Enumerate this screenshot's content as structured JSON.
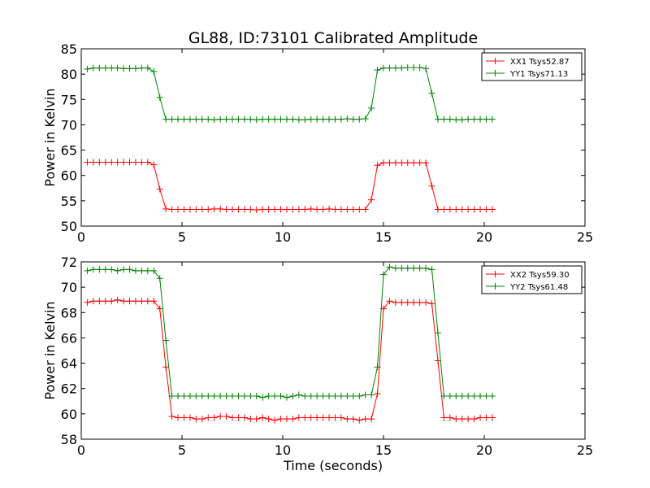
{
  "figure": {
    "title": "GL88, ID:73101 Calibrated Amplitude",
    "xlabel": "Time (seconds)"
  },
  "chart_data": [
    {
      "type": "line",
      "title": "GL88, ID:73101 Calibrated Amplitude",
      "xlabel": "",
      "ylabel": "Power in Kelvin",
      "xlim": [
        0,
        25
      ],
      "ylim": [
        50,
        85
      ],
      "xticks": [
        0,
        5,
        10,
        15,
        20,
        25
      ],
      "yticks": [
        50,
        55,
        60,
        65,
        70,
        75,
        80,
        85
      ],
      "grid": false,
      "legend_position": "top-right",
      "x": [
        0.3,
        0.6,
        0.9,
        1.2,
        1.5,
        1.8,
        2.1,
        2.4,
        2.7,
        3.0,
        3.3,
        3.6,
        3.9,
        4.2,
        4.5,
        4.8,
        5.1,
        5.4,
        5.7,
        6.0,
        6.3,
        6.6,
        6.9,
        7.2,
        7.5,
        7.8,
        8.1,
        8.4,
        8.7,
        9.0,
        9.3,
        9.6,
        9.9,
        10.2,
        10.5,
        10.8,
        11.1,
        11.4,
        11.7,
        12.0,
        12.3,
        12.6,
        12.9,
        13.2,
        13.5,
        13.8,
        14.1,
        14.4,
        14.7,
        15.0,
        15.3,
        15.6,
        15.9,
        16.2,
        16.5,
        16.8,
        17.1,
        17.4,
        17.7,
        18.0,
        18.3,
        18.6,
        18.9,
        19.2,
        19.5,
        19.8,
        20.1,
        20.4
      ],
      "series": [
        {
          "name": "XX1 Tsys52.87",
          "color": "#ff0000",
          "values": [
            62.6,
            62.6,
            62.6,
            62.6,
            62.6,
            62.6,
            62.6,
            62.6,
            62.6,
            62.6,
            62.6,
            62.1,
            57.3,
            53.4,
            53.3,
            53.3,
            53.3,
            53.3,
            53.3,
            53.3,
            53.3,
            53.4,
            53.4,
            53.3,
            53.3,
            53.3,
            53.3,
            53.3,
            53.2,
            53.3,
            53.3,
            53.3,
            53.3,
            53.3,
            53.3,
            53.3,
            53.3,
            53.4,
            53.3,
            53.3,
            53.4,
            53.3,
            53.3,
            53.3,
            53.3,
            53.3,
            53.3,
            55.2,
            62.0,
            62.5,
            62.5,
            62.5,
            62.5,
            62.5,
            62.5,
            62.5,
            62.5,
            57.9,
            53.3,
            53.3,
            53.3,
            53.3,
            53.3,
            53.3,
            53.3,
            53.3,
            53.3,
            53.3
          ]
        },
        {
          "name": "YY1 Tsys71.13",
          "color": "#008000",
          "values": [
            81.0,
            81.2,
            81.2,
            81.2,
            81.2,
            81.2,
            81.1,
            81.1,
            81.1,
            81.2,
            81.2,
            80.5,
            75.4,
            71.1,
            71.1,
            71.1,
            71.1,
            71.1,
            71.1,
            71.1,
            71.1,
            71.0,
            71.1,
            71.1,
            71.1,
            71.1,
            71.1,
            71.1,
            71.0,
            71.1,
            71.1,
            71.1,
            71.1,
            71.1,
            71.1,
            71.0,
            71.0,
            71.1,
            71.1,
            71.1,
            71.1,
            71.1,
            71.1,
            71.2,
            71.1,
            71.1,
            71.2,
            73.3,
            80.8,
            81.2,
            81.2,
            81.2,
            81.2,
            81.3,
            81.3,
            81.3,
            81.1,
            76.2,
            71.1,
            71.1,
            71.1,
            71.0,
            71.0,
            71.1,
            71.1,
            71.1,
            71.1,
            71.1
          ]
        }
      ]
    },
    {
      "type": "line",
      "title": "",
      "xlabel": "Time (seconds)",
      "ylabel": "Power in Kelvin",
      "xlim": [
        0,
        25
      ],
      "ylim": [
        58,
        72
      ],
      "xticks": [
        0,
        5,
        10,
        15,
        20,
        25
      ],
      "yticks": [
        58,
        60,
        62,
        64,
        66,
        68,
        70,
        72
      ],
      "grid": false,
      "legend_position": "top-right",
      "x": [
        0.3,
        0.6,
        0.9,
        1.2,
        1.5,
        1.8,
        2.1,
        2.4,
        2.7,
        3.0,
        3.3,
        3.6,
        3.9,
        4.2,
        4.5,
        4.8,
        5.1,
        5.4,
        5.7,
        6.0,
        6.3,
        6.6,
        6.9,
        7.2,
        7.5,
        7.8,
        8.1,
        8.4,
        8.7,
        9.0,
        9.3,
        9.6,
        9.9,
        10.2,
        10.5,
        10.8,
        11.1,
        11.4,
        11.7,
        12.0,
        12.3,
        12.6,
        12.9,
        13.2,
        13.5,
        13.8,
        14.1,
        14.4,
        14.7,
        15.0,
        15.3,
        15.6,
        15.9,
        16.2,
        16.5,
        16.8,
        17.1,
        17.4,
        17.7,
        18.0,
        18.3,
        18.6,
        18.9,
        19.2,
        19.5,
        19.8,
        20.1,
        20.4
      ],
      "series": [
        {
          "name": "XX2 Tsys59.30",
          "color": "#ff0000",
          "values": [
            68.8,
            68.9,
            68.9,
            68.9,
            68.9,
            69.0,
            68.9,
            68.9,
            68.9,
            68.9,
            68.9,
            68.9,
            68.3,
            63.7,
            59.8,
            59.7,
            59.7,
            59.7,
            59.6,
            59.6,
            59.7,
            59.7,
            59.8,
            59.8,
            59.7,
            59.7,
            59.7,
            59.6,
            59.6,
            59.7,
            59.6,
            59.5,
            59.6,
            59.6,
            59.6,
            59.7,
            59.7,
            59.7,
            59.7,
            59.7,
            59.7,
            59.7,
            59.7,
            59.6,
            59.6,
            59.5,
            59.6,
            59.6,
            61.6,
            68.3,
            68.9,
            68.8,
            68.8,
            68.8,
            68.8,
            68.8,
            68.8,
            68.7,
            64.2,
            59.7,
            59.7,
            59.6,
            59.6,
            59.6,
            59.6,
            59.7,
            59.7,
            59.7
          ]
        },
        {
          "name": "YY2 Tsys61.48",
          "color": "#008000",
          "values": [
            71.3,
            71.4,
            71.4,
            71.4,
            71.4,
            71.3,
            71.4,
            71.4,
            71.3,
            71.3,
            71.3,
            71.3,
            70.7,
            65.8,
            61.4,
            61.4,
            61.4,
            61.4,
            61.4,
            61.4,
            61.4,
            61.4,
            61.4,
            61.4,
            61.4,
            61.4,
            61.4,
            61.4,
            61.4,
            61.3,
            61.4,
            61.4,
            61.4,
            61.3,
            61.4,
            61.5,
            61.4,
            61.4,
            61.4,
            61.4,
            61.4,
            61.4,
            61.4,
            61.4,
            61.4,
            61.4,
            61.5,
            61.5,
            63.7,
            71.0,
            71.6,
            71.5,
            71.5,
            71.5,
            71.5,
            71.5,
            71.5,
            71.4,
            66.4,
            61.4,
            61.4,
            61.4,
            61.4,
            61.4,
            61.4,
            61.4,
            61.4,
            61.4
          ]
        }
      ]
    }
  ]
}
